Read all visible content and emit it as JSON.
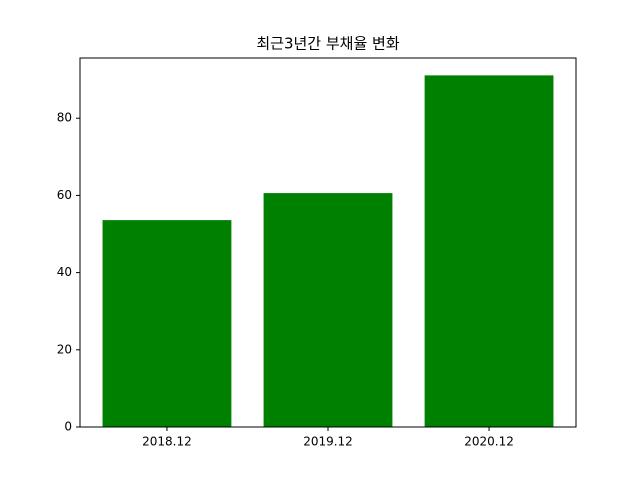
{
  "chart_data": {
    "type": "bar",
    "title": "최근3년간 부채율 변화",
    "categories": [
      "2018.12",
      "2019.12",
      "2020.12"
    ],
    "values": [
      53.6,
      60.6,
      91.1
    ],
    "color": "#008000",
    "ylim": [
      0,
      95.6
    ],
    "yticks": [
      0,
      20,
      40,
      60,
      80
    ]
  }
}
